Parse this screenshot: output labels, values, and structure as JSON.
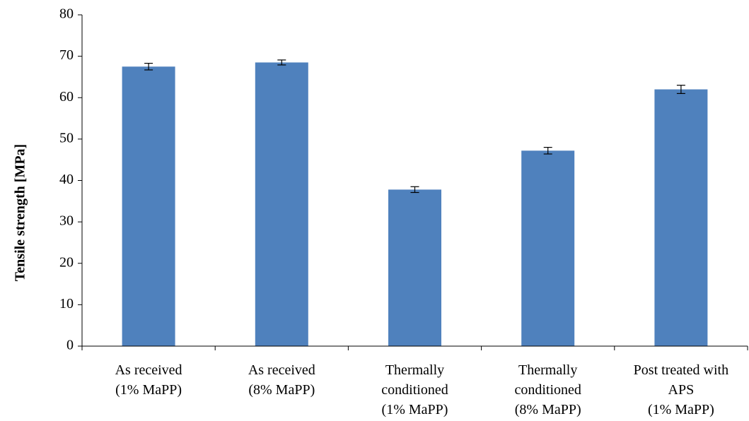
{
  "chart_data": {
    "type": "bar",
    "title": "",
    "xlabel": "",
    "ylabel": "Tensile strength [MPa]",
    "ylim": [
      0,
      80
    ],
    "yticks": [
      0,
      10,
      20,
      30,
      40,
      50,
      60,
      70,
      80
    ],
    "grid": false,
    "categories": [
      [
        "As received",
        "(1% MaPP)"
      ],
      [
        "As received",
        "(8% MaPP)"
      ],
      [
        "Thermally",
        "conditioned",
        "(1% MaPP)"
      ],
      [
        "Thermally",
        "conditioned",
        "(8% MaPP)"
      ],
      [
        "Post treated with",
        "APS",
        "(1% MaPP)"
      ]
    ],
    "values": [
      67.5,
      68.5,
      37.8,
      47.2,
      62.0
    ],
    "errors": [
      0.8,
      0.6,
      0.7,
      0.8,
      1.0
    ],
    "bar_color": "#4F81BD",
    "axis_color": "#000000"
  }
}
